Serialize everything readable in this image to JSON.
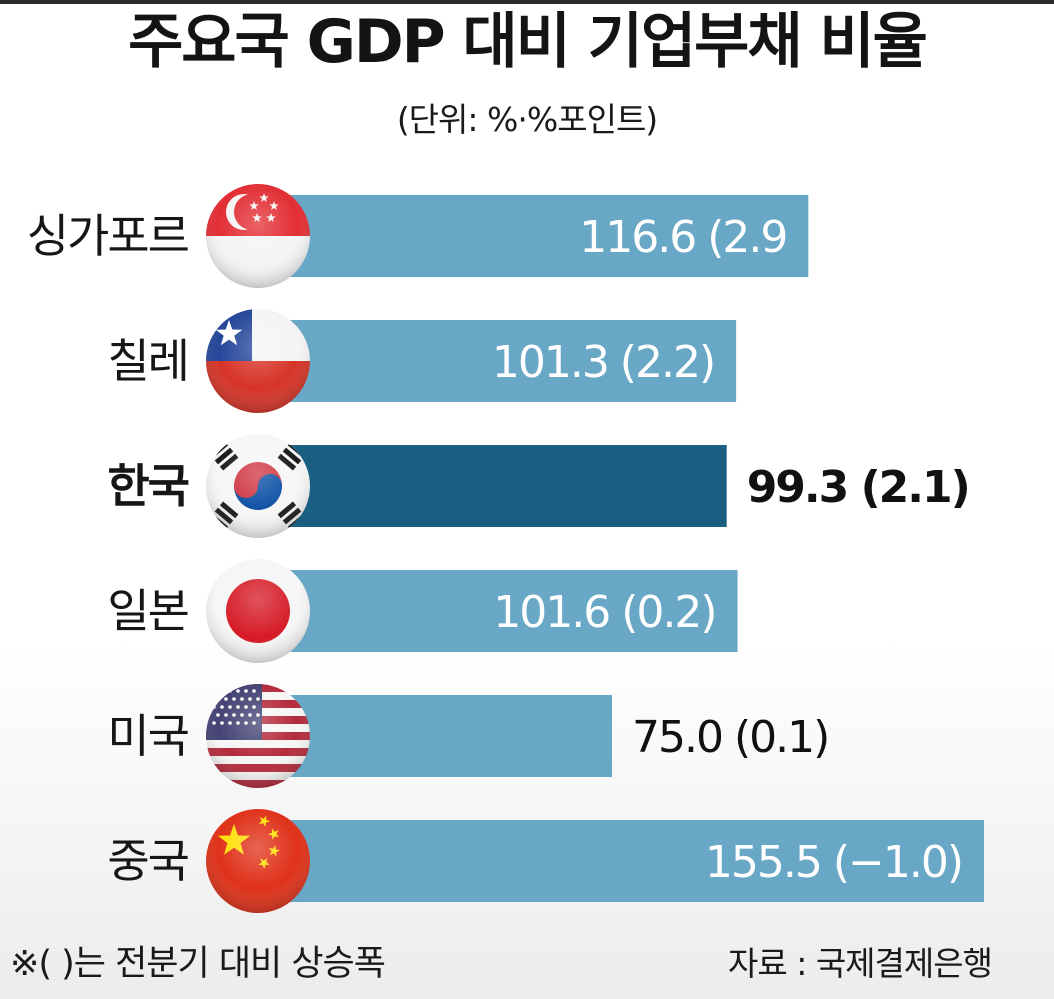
{
  "header": {
    "title": "주요국 GDP 대비 기업부채 비율",
    "subtitle": "(단위: %·%포인트)"
  },
  "footer": {
    "note": "※(  )는 전분기 대비 상승폭",
    "source": "자료 : 국제결제은행"
  },
  "colors": {
    "bar": "#68a7c5",
    "highlight_bar": "#1a5f82",
    "text": "#141414"
  },
  "chart_data": {
    "type": "bar",
    "orientation": "horizontal",
    "title": "주요국 GDP 대비 기업부채 비율",
    "subtitle": "(단위: %·%포인트)",
    "categories": [
      "싱가포르",
      "칠레",
      "한국",
      "일본",
      "미국",
      "중국"
    ],
    "values": [
      116.6,
      101.3,
      99.3,
      101.6,
      75.0,
      155.5
    ],
    "changes": [
      2.9,
      2.2,
      2.1,
      0.2,
      0.1,
      -1.0
    ],
    "value_labels": [
      "116.6 (2.9",
      "101.3 (2.2)",
      "99.3 (2.1)",
      "101.6 (0.2)",
      "75.0 (0.1)",
      "155.5 (−1.0)"
    ],
    "flags": [
      "singapore-flag",
      "chile-flag",
      "korea-flag",
      "japan-flag",
      "usa-flag",
      "china-flag"
    ],
    "highlight": "한국",
    "grid": false,
    "legend": "none"
  }
}
